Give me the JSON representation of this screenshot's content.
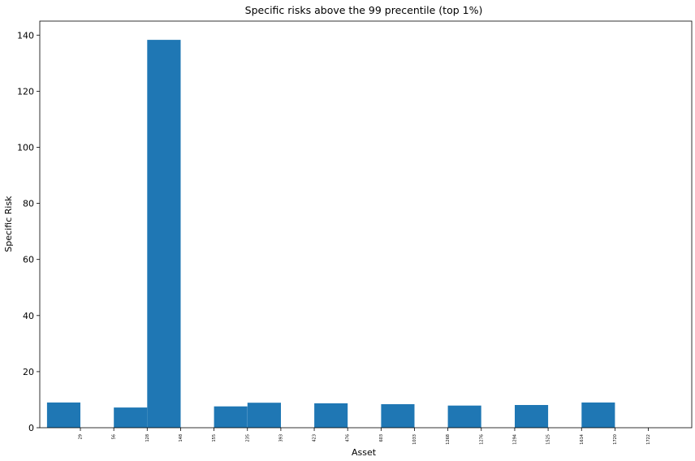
{
  "chart_data": {
    "type": "bar",
    "title": "Specific risks above the 99 precentile (top 1%)",
    "xlabel": "Asset",
    "ylabel": "Specific Risk",
    "ylim": [
      0,
      145
    ],
    "yticks": [
      0,
      20,
      40,
      60,
      80,
      100,
      120,
      140
    ],
    "grid": false,
    "bar_color": "#1f77b4",
    "categories": [
      "29",
      "56",
      "128",
      "148",
      "155",
      "235",
      "393",
      "423",
      "476",
      "603",
      "1033",
      "1268",
      "1276",
      "1294",
      "1525",
      "1614",
      "1720",
      "1722"
    ],
    "bars": [
      {
        "from": "29",
        "to": "56",
        "value": 9.0
      },
      {
        "from": "128",
        "to": "148",
        "value": 7.2
      },
      {
        "from": "148",
        "to": "155",
        "value": 138.3
      },
      {
        "from": "235",
        "to": "393",
        "value": 7.6
      },
      {
        "from": "393",
        "to": "423",
        "value": 8.9
      },
      {
        "from": "476",
        "to": "603",
        "value": 8.7
      },
      {
        "from": "1033",
        "to": "1268",
        "value": 8.4
      },
      {
        "from": "1276",
        "to": "1294",
        "value": 7.9
      },
      {
        "from": "1525",
        "to": "1614",
        "value": 8.1
      },
      {
        "from": "1720",
        "to": "1722",
        "value": 9.0
      }
    ]
  }
}
